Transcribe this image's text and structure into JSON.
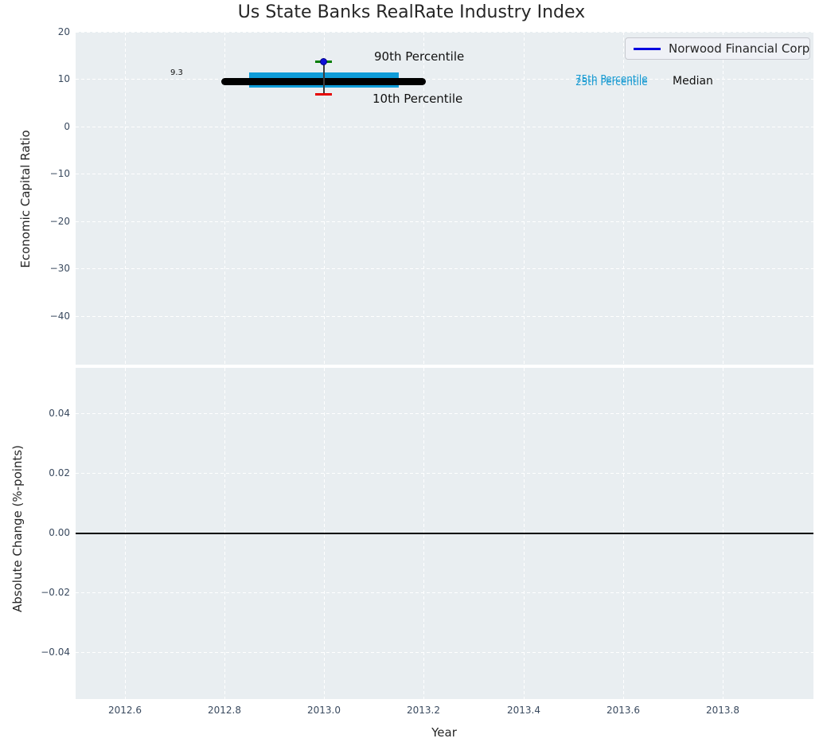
{
  "title": "Us State Banks RealRate Industry Index",
  "legend": {
    "label": "Norwood Financial Corp"
  },
  "annotations": {
    "p90_label": "90th Percentile",
    "p10_label": "10th Percentile",
    "p75_label": "75th Percentile",
    "p25_label": "25th Percentile",
    "median_label": "Median",
    "median_value_label": "9.3"
  },
  "axes": {
    "top": {
      "ylabel": "Economic Capital Ratio",
      "y_ticks": [
        "20",
        "10",
        "0",
        "−10",
        "−20",
        "−30",
        "−40"
      ]
    },
    "bottom": {
      "ylabel": "Absolute Change (%-points)",
      "xlabel": "Year",
      "y_ticks": [
        "0.04",
        "0.02",
        "0.00",
        "−0.02",
        "−0.04"
      ],
      "x_ticks": [
        "2012.6",
        "2012.8",
        "2013.0",
        "2013.2",
        "2013.4",
        "2013.6",
        "2013.8"
      ]
    }
  },
  "colors": {
    "plot_bg": "#e9eef1",
    "grid": "#ffffff",
    "tick_text": "#3a4a5f",
    "title_text": "#262626",
    "median_line": "#000000",
    "quartile_band": "#0f9cd8",
    "company_marker": "#0f0fd9",
    "upper_cap": "#007d00",
    "lower_cap": "#e60000",
    "legend_line": "#0000e0",
    "zero_line": "#000000"
  },
  "chart_data": [
    {
      "type": "line",
      "title": "Us State Banks RealRate Industry Index",
      "ylabel": "Economic Capital Ratio",
      "xlim": [
        2012.5,
        2013.98
      ],
      "ylim": [
        -50.3,
        20
      ],
      "y_tick_values": [
        20,
        10,
        0,
        -10,
        -20,
        -30,
        -40
      ],
      "grid": true,
      "legend_position": "upper right",
      "series": [
        {
          "name": "Norwood Financial Corp",
          "type": "scatter",
          "x": [
            2013.0
          ],
          "y": [
            13.4
          ],
          "marker": "o",
          "color": "blue",
          "errorbar": {
            "upper_cap_value": 13.4,
            "lower_cap_value": 7.1,
            "upper_cap_color": "green",
            "lower_cap_color": "red"
          }
        },
        {
          "name": "Median",
          "x": [
            2012.79,
            2013.21
          ],
          "y": [
            9.3,
            9.3
          ],
          "color": "black",
          "style": "thick",
          "value_label": "9.3"
        },
        {
          "name": "75th Percentile",
          "x": [
            2012.85,
            2013.15
          ],
          "y": [
            11.3,
            11.3
          ],
          "color": "#0f9cd8",
          "style": "thick"
        },
        {
          "name": "25th Percentile",
          "x": [
            2012.85,
            2013.15
          ],
          "y": [
            8.2,
            8.2
          ],
          "color": "#0f9cd8",
          "style": "thick"
        }
      ],
      "annotations": [
        {
          "text": "90th Percentile",
          "near": [
            2013.1,
            15
          ]
        },
        {
          "text": "10th Percentile",
          "near": [
            2013.1,
            5
          ]
        },
        {
          "text": "75th Percentile",
          "near": [
            2013.5,
            10
          ]
        },
        {
          "text": "25th Percentile",
          "near": [
            2013.5,
            9.5
          ]
        },
        {
          "text": "Median",
          "near": [
            2013.7,
            10
          ]
        },
        {
          "text": "9.3",
          "near": [
            2012.7,
            10
          ]
        }
      ]
    },
    {
      "type": "line",
      "ylabel": "Absolute Change (%-points)",
      "xlabel": "Year",
      "xlim": [
        2012.5,
        2013.98
      ],
      "ylim": [
        -0.056,
        0.055
      ],
      "y_tick_values": [
        0.04,
        0.02,
        0.0,
        -0.02,
        -0.04
      ],
      "x_tick_values": [
        2012.6,
        2012.8,
        2013.0,
        2013.2,
        2013.4,
        2013.6,
        2013.8
      ],
      "grid": true,
      "series": [
        {
          "name": "zero-line",
          "x": [
            2012.5,
            2013.98
          ],
          "y": [
            0,
            0
          ],
          "color": "black"
        }
      ]
    }
  ]
}
